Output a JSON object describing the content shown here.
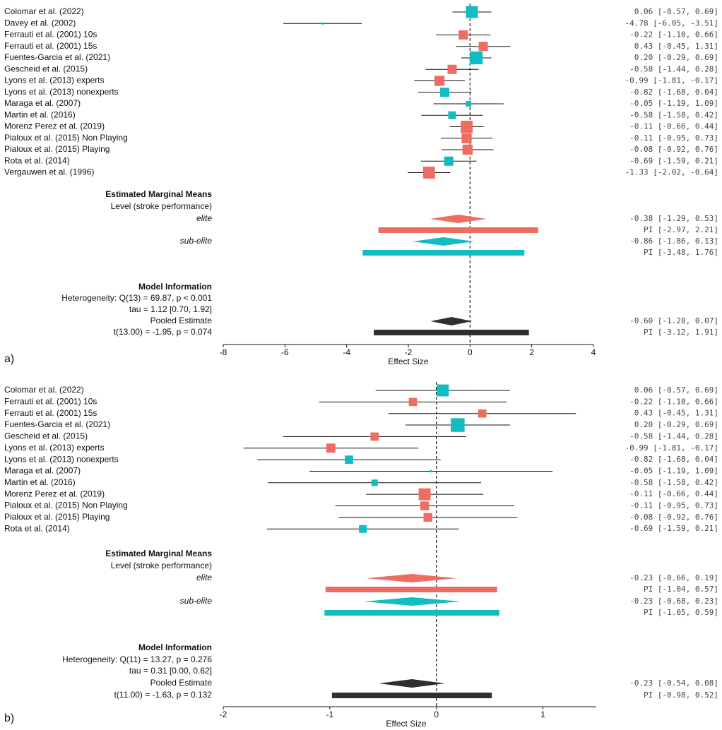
{
  "colors": {
    "elite": "#EE6D63",
    "sub_elite": "#12BCC2",
    "pooled": "#2F2F2F",
    "line": "#111111"
  },
  "chart_data": [
    {
      "type": "forest",
      "panel_label": "a)",
      "xlabel": "Effect Size",
      "xlim": [
        -8,
        4
      ],
      "xticks": [
        -8,
        -6,
        -4,
        -2,
        0,
        2,
        4
      ],
      "studies": [
        {
          "name": "Colomar et al. (2022)",
          "group": "sub-elite",
          "est": 0.06,
          "lo": -0.57,
          "hi": 0.69,
          "weight": 1.3,
          "ci_text": " 0.06 [-0.57,  0.69]"
        },
        {
          "name": "Davey et al. (2002)",
          "group": "sub-elite",
          "est": -4.78,
          "lo": -6.05,
          "hi": -3.51,
          "weight": 0.15,
          "ci_text": "-4.78 [-6.05, -3.51]"
        },
        {
          "name": "Ferrauti et al. (2001) 10s",
          "group": "elite",
          "est": -0.22,
          "lo": -1.1,
          "hi": 0.66,
          "weight": 1.0,
          "ci_text": "-0.22 [-1.10,  0.66]"
        },
        {
          "name": "Ferrauti et al. (2001) 15s",
          "group": "elite",
          "est": 0.43,
          "lo": -0.45,
          "hi": 1.31,
          "weight": 1.0,
          "ci_text": " 0.43 [-0.45,  1.31]"
        },
        {
          "name": "Fuentes-Garcia et al. (2021)",
          "group": "sub-elite",
          "est": 0.2,
          "lo": -0.29,
          "hi": 0.69,
          "weight": 1.4,
          "ci_text": " 0.20 [-0.29,  0.69]"
        },
        {
          "name": "Gescheid et al. (2015)",
          "group": "elite",
          "est": -0.58,
          "lo": -1.44,
          "hi": 0.28,
          "weight": 1.0,
          "ci_text": "-0.58 [-1.44,  0.28]"
        },
        {
          "name": "Lyons et al. (2013) experts",
          "group": "elite",
          "est": -0.99,
          "lo": -1.81,
          "hi": -0.17,
          "weight": 1.1,
          "ci_text": "-0.99 [-1.81, -0.17]"
        },
        {
          "name": "Lyons et al. (2013) nonexperts",
          "group": "sub-elite",
          "est": -0.82,
          "lo": -1.68,
          "hi": 0.04,
          "weight": 1.0,
          "ci_text": "-0.82 [-1.68,  0.04]"
        },
        {
          "name": "Maraga et al. (2007)",
          "group": "sub-elite",
          "est": -0.05,
          "lo": -1.19,
          "hi": 1.09,
          "weight": 0.6,
          "ci_text": "-0.05 [-1.19,  1.09]"
        },
        {
          "name": "Martin et al. (2016)",
          "group": "sub-elite",
          "est": -0.58,
          "lo": -1.58,
          "hi": 0.42,
          "weight": 0.85,
          "ci_text": "-0.58 [-1.58,  0.42]"
        },
        {
          "name": "Morenz Perez et al. (2019)",
          "group": "elite",
          "est": -0.11,
          "lo": -0.66,
          "hi": 0.44,
          "weight": 1.3,
          "ci_text": "-0.11 [-0.66,  0.44]"
        },
        {
          "name": "Pialoux et al. (2015) Non Playing",
          "group": "elite",
          "est": -0.11,
          "lo": -0.95,
          "hi": 0.73,
          "weight": 1.1,
          "ci_text": "-0.11 [-0.95,  0.73]"
        },
        {
          "name": "Pialoux et al. (2015) Playing",
          "group": "elite",
          "est": -0.08,
          "lo": -0.92,
          "hi": 0.76,
          "weight": 1.1,
          "ci_text": "-0.08 [-0.92,  0.76]"
        },
        {
          "name": "Rota et al. (2014)",
          "group": "sub-elite",
          "est": -0.69,
          "lo": -1.59,
          "hi": 0.21,
          "weight": 1.0,
          "ci_text": "-0.69 [-1.59,  0.21]"
        },
        {
          "name": "Vergauwen et al. (1996)",
          "group": "elite",
          "est": -1.33,
          "lo": -2.02,
          "hi": -0.64,
          "weight": 1.3,
          "ci_text": "-1.33 [-2.02, -0.64]"
        }
      ],
      "emm": {
        "title": "Estimated Marginal Means",
        "subtitle": "Level (stroke performance)",
        "groups": [
          {
            "label": "elite",
            "key": "elite",
            "est": -0.38,
            "lo": -1.29,
            "hi": 0.53,
            "pi_lo": -2.97,
            "pi_hi": 2.21,
            "ci_text": "-0.38 [-1.29,  0.53]",
            "pi_text": "PI [-2.97,  2.21]"
          },
          {
            "label": "sub-elite",
            "key": "sub_elite",
            "est": -0.86,
            "lo": -1.86,
            "hi": 0.13,
            "pi_lo": -3.48,
            "pi_hi": 1.76,
            "ci_text": "-0.86 [-1.86,  0.13]",
            "pi_text": "PI [-3.48,  1.76]"
          }
        ]
      },
      "model": {
        "title": "Model Information",
        "heterogeneity": "Heterogeneity: Q(13) = 69.87, p < 0.001",
        "tau": "tau = 1.12 [0.70, 1.92]",
        "pooled_label": "Pooled Estimate",
        "t_test": "t(13.00) = -1.95, p = 0.074",
        "est": -0.6,
        "lo": -1.28,
        "hi": 0.07,
        "pi_lo": -3.12,
        "pi_hi": 1.91,
        "ci_text": "-0.60 [-1.28,  0.07]",
        "pi_text": "PI [-3.12,  1.91]"
      }
    },
    {
      "type": "forest",
      "panel_label": "b)",
      "xlabel": "Effect Size",
      "xlim": [
        -2,
        1.5
      ],
      "xticks": [
        -2,
        -1,
        0,
        1
      ],
      "studies": [
        {
          "name": "Colomar et al. (2022)",
          "group": "sub-elite",
          "est": 0.06,
          "lo": -0.57,
          "hi": 0.69,
          "weight": 1.3,
          "ci_text": " 0.06 [-0.57,  0.69]"
        },
        {
          "name": "Ferrauti et al. (2001) 10s",
          "group": "elite",
          "est": -0.22,
          "lo": -1.1,
          "hi": 0.66,
          "weight": 0.9,
          "ci_text": "-0.22 [-1.10,  0.66]"
        },
        {
          "name": "Ferrauti et al. (2001) 15s",
          "group": "elite",
          "est": 0.43,
          "lo": -0.45,
          "hi": 1.31,
          "weight": 0.9,
          "ci_text": " 0.43 [-0.45,  1.31]"
        },
        {
          "name": "Fuentes-Garcia et al. (2021)",
          "group": "sub-elite",
          "est": 0.2,
          "lo": -0.29,
          "hi": 0.69,
          "weight": 1.5,
          "ci_text": " 0.20 [-0.29,  0.69]"
        },
        {
          "name": "Gescheid et al. (2015)",
          "group": "elite",
          "est": -0.58,
          "lo": -1.44,
          "hi": 0.28,
          "weight": 0.9,
          "ci_text": "-0.58 [-1.44,  0.28]"
        },
        {
          "name": "Lyons et al. (2013) experts",
          "group": "elite",
          "est": -0.99,
          "lo": -1.81,
          "hi": -0.17,
          "weight": 1.0,
          "ci_text": "-0.99 [-1.81, -0.17]"
        },
        {
          "name": "Lyons et al. (2013) nonexperts",
          "group": "sub-elite",
          "est": -0.82,
          "lo": -1.68,
          "hi": 0.04,
          "weight": 0.9,
          "ci_text": "-0.82 [-1.68,  0.04]"
        },
        {
          "name": "Maraga et al. (2007)",
          "group": "sub-elite",
          "est": -0.05,
          "lo": -1.19,
          "hi": 1.09,
          "weight": 0.25,
          "ci_text": "-0.05 [-1.19,  1.09]"
        },
        {
          "name": "Martin et al. (2016)",
          "group": "sub-elite",
          "est": -0.58,
          "lo": -1.58,
          "hi": 0.42,
          "weight": 0.7,
          "ci_text": "-0.58 [-1.58,  0.42]"
        },
        {
          "name": "Morenz Perez et al. (2019)",
          "group": "elite",
          "est": -0.11,
          "lo": -0.66,
          "hi": 0.44,
          "weight": 1.3,
          "ci_text": "-0.11 [-0.66,  0.44]"
        },
        {
          "name": "Pialoux et al. (2015) Non Playing",
          "group": "elite",
          "est": -0.11,
          "lo": -0.95,
          "hi": 0.73,
          "weight": 0.95,
          "ci_text": "-0.11 [-0.95,  0.73]"
        },
        {
          "name": "Pialoux et al. (2015) Playing",
          "group": "elite",
          "est": -0.08,
          "lo": -0.92,
          "hi": 0.76,
          "weight": 0.95,
          "ci_text": "-0.08 [-0.92,  0.76]"
        },
        {
          "name": "Rota et al. (2014)",
          "group": "sub-elite",
          "est": -0.69,
          "lo": -1.59,
          "hi": 0.21,
          "weight": 0.85,
          "ci_text": "-0.69 [-1.59,  0.21]"
        }
      ],
      "emm": {
        "title": "Estimated Marginal Means",
        "subtitle": "Level (stroke performance)",
        "groups": [
          {
            "label": "elite",
            "key": "elite",
            "est": -0.23,
            "lo": -0.66,
            "hi": 0.19,
            "pi_lo": -1.04,
            "pi_hi": 0.57,
            "ci_text": "-0.23 [-0.66,  0.19]",
            "pi_text": "PI [-1.04,  0.57]"
          },
          {
            "label": "sub-elite",
            "key": "sub_elite",
            "est": -0.23,
            "lo": -0.68,
            "hi": 0.23,
            "pi_lo": -1.05,
            "pi_hi": 0.59,
            "ci_text": "-0.23 [-0.68,  0.23]",
            "pi_text": "PI [-1.05,  0.59]"
          }
        ]
      },
      "model": {
        "title": "Model Information",
        "heterogeneity": "Heterogeneity: Q(11) = 13.27, p = 0.276",
        "tau": "tau = 0.31 [0.00, 0.62]",
        "pooled_label": "Pooled Estimate",
        "t_test": "t(11.00) = -1.63, p = 0.132",
        "est": -0.23,
        "lo": -0.54,
        "hi": 0.08,
        "pi_lo": -0.98,
        "pi_hi": 0.52,
        "ci_text": "-0.23 [-0.54,  0.08]",
        "pi_text": "PI [-0.98,  0.52]"
      }
    }
  ]
}
